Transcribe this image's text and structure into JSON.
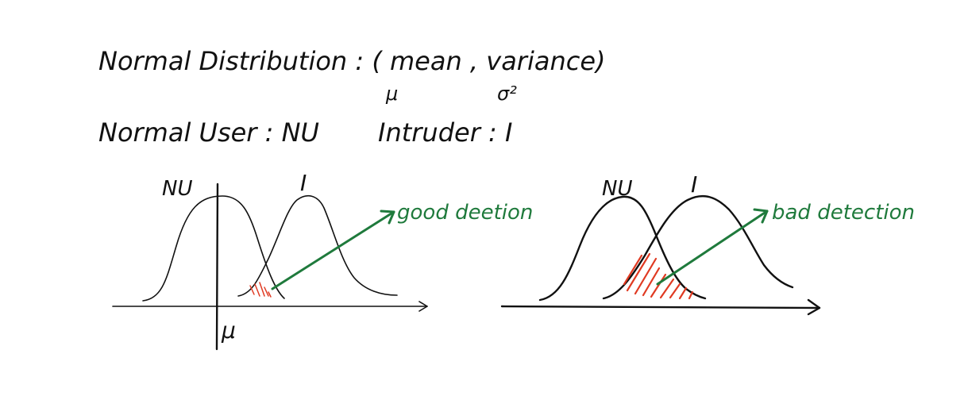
{
  "header": {
    "line1": "Normal Distribution : ( mean , variance)",
    "mu_symbol": "μ",
    "sigma_symbol": "σ²",
    "normal_user": "Normal User : NU",
    "intruder": "Intruder : I"
  },
  "left_plot": {
    "nu_label": "NU",
    "i_label": "I",
    "annotation": "good deetion",
    "axis_label": "μ"
  },
  "right_plot": {
    "nu_label": "NU",
    "i_label": "I",
    "annotation": "bad detection"
  },
  "colors": {
    "ink": "#111111",
    "overlap_hatch": "#e03a22",
    "annotation": "#1f7a3c"
  }
}
